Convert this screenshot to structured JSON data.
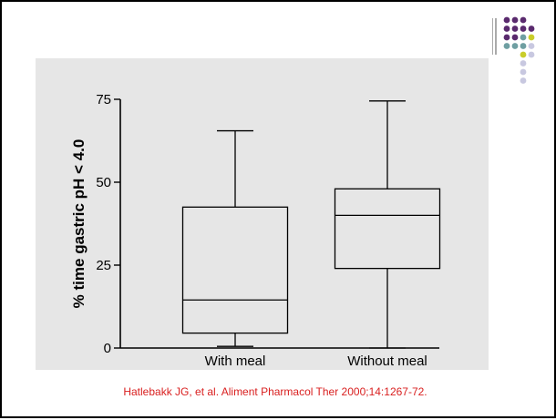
{
  "colors": {
    "accent_purple": "#5a2a6e",
    "accent_teal": "#6f9fa2",
    "accent_yellow": "#c9cd2a",
    "accent_lavender": "#c8c8e0",
    "citation": "#d92020",
    "panel": "#e6e6e6"
  },
  "citation": "Hatlebakk JG, et al. Aliment Pharmacol Ther 2000;14:1267-72.",
  "chart_data": {
    "type": "box",
    "title": "",
    "ylabel": "% time gastric pH < 4.0",
    "xlabel": "",
    "ylim": [
      0,
      75
    ],
    "yticks": [
      0,
      25,
      50,
      75
    ],
    "ytick_labels": [
      "0",
      "25",
      "50",
      "75"
    ],
    "grid": false,
    "categories": [
      "With meal",
      "Without meal"
    ],
    "boxes": [
      {
        "category": "With meal",
        "min": 0.5,
        "q1": 4.5,
        "median": 14.5,
        "q3": 42.5,
        "max": 65.5
      },
      {
        "category": "Without meal",
        "min": 0,
        "q1": 24,
        "median": 40,
        "q3": 48,
        "max": 74.5
      }
    ]
  }
}
